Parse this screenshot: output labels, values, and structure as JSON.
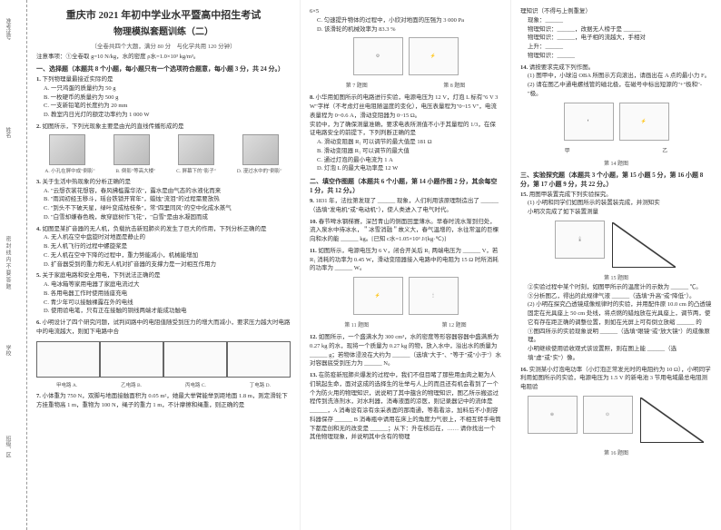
{
  "binding": {
    "l1": "准考证号",
    "l2": "姓名",
    "l3": "密 封 线 内 不 要 答 题",
    "l4": "学校",
    "l5": "班级、区"
  },
  "header": {
    "title": "重庆市 2021 年初中学业水平暨高中招生考试",
    "subtitle": "物理模拟套题训练（二）",
    "meta": "（全卷共四个大题，满分 80 分　与化学共用 120 分钟）",
    "note": "注意事项：①全卷取 g=10 N/kg，水的密度 ρ水=1.0×10³ kg/m³。"
  },
  "section1": {
    "head": "一、选择题（本题共 8 个小题，每小题只有一个选项符合题意，每小题 3 分，共 24 分。）",
    "q1": {
      "num": "1.",
      "stem": "下列物理量最接近实际的是",
      "opts": [
        "A. 一只鸡蛋的质量约为 50 g",
        "B. 一枚硬币的质量约为 500 g",
        "C. 一支新铅笔的长度约为 20 mm",
        "D. 教室内日光灯的额定功率约为 1 000 W"
      ]
    },
    "q2": {
      "num": "2.",
      "stem": "如图所示，下列光现象主要是由光的直线传播形成的是",
      "caps": [
        "A. 小孔在屏中成\"倒影\"",
        "B. 倒影\"等高大楼\"",
        "C. 屏幕下的\"影子\"",
        "D. 漫过水中的\"倒影\""
      ]
    },
    "q3": {
      "num": "3.",
      "stem": "关于生活中热现象的分析正确的是",
      "opts": [
        "A. \"云想衣裳花想容，春风拂槛露华浓\"，露水是由气态的水液化而来",
        "B. \"雨润初经玉移斗，瑶台铁锁开宵年\"，蜡烛\"流泪\"的过程需要放热",
        "C. \"到头不下破天星，绿叶变成枯枝条\"，常\"四里同风\"的空中化成水蒸气",
        "D. \"白雪却嫌春色晚，故穿庭树作飞花\"，\"白雪\"是由水凝固而成"
      ]
    },
    "q4": {
      "num": "4.",
      "stem": "如图是某扩音器的无人机，负载抗击新冠肺炎的发生了巨大的作用，下列分析正确的是",
      "opts": [
        "A. 无人机在空中盘旋时对地面是静止的",
        "B. 无人机飞行的过程中螺旋桨是",
        "C. 无人机在空中下降的过程中，重力势能减小，机械能增加",
        "D. 扩音器受到的重力和无人机对扩音器的支撑力是一对相互作用力"
      ]
    },
    "q5": {
      "num": "5.",
      "stem": "关于家庭电路和安全用电，下列说法正确的是",
      "opts": [
        "A. 电冰箱等家用电器了家庭电流过大",
        "B. 各用电器工作时使用插座充电",
        "C. 青少年可以接触裸露在外的电线",
        "D. 使用验电笔，只有正在接触的铜线两端才能成功触电"
      ]
    },
    "q6": {
      "num": "6.",
      "stem": "小明设计了四个研究问题，试判间路中的电阻值随受到压力的增大而减小，要求压力越大时电路中的电流越大，则如下电路中合",
      "caps": [
        "甲电路 A.",
        "乙电路 B.",
        "丙电路 C.",
        "丁电路 D."
      ]
    },
    "q7": {
      "num": "7.",
      "stem": "小体重为 750 N，双脚与地面接触面积为 0.05 m²，她最大举臂能举到距地面 1.8 m，则定滑轮下方挂重物高 1 m，重物为 100 N，绳子的重力 1 m，不计摩擦和绳重，则正确的是",
      "statement_c": "C. 匀速提升物体的过程中，小欣对地面的压强为 3 000 Pa",
      "statement_d": "D. 该滑轮的机械效率为 83.3 %"
    }
  },
  "col2": {
    "q7_cont": "6×5",
    "fig7cap": "第 7 题图",
    "fig8cap": "第 8 题图",
    "q8": {
      "num": "8.",
      "stem": "小华用如图所示的电路进行实验，电源电压为 12 V，灯泡 L 标有\"6 V 3 W\"字样（不考虑灯丝电阻随温度的变化），电压表量程为\"0~15 V\"，电流表量程为 0~0.6 A，滑动变阻器为 0~15 Ω。",
      "lead": "实验中，为了确保测量准确，要求电表所测值不小于其量程的 1/3，在保证电路安全的前提下，下列判断正确的是",
      "opts": [
        "A. 滑动变阻器 R₁ 可以调节的最大值是 181 Ω",
        "B. 滑动变阻器 R₁ 可以调节的最大值",
        "C. 通过灯泡的最小电流为 1 A",
        "D. 灯泡 L 的最大电功率是 12 W"
      ]
    },
    "section2_head": "二、填空作图题（本题共 6 个小题，第 14 小题作图 2 分，其余每空 1 分，共 12 分。）",
    "q9": {
      "num": "9.",
      "stem": "1831 年，法拉第发现了 ______ 现象，人们利用该原理制造出了 ______（选填\"发电机\"或\"电动机\"），使人类进入了电气时代。"
    },
    "q10": {
      "num": "10.",
      "stem": "春节啤水钢梯赛，深凹青山的侧面回里薄水。早春时流水渐到归处，流入泉水中待冰水，＂冰雪消融＂故义大，春气温增的，水往常温的巨棵向和水的能 ______ kg。[已知 c水=1.05×10³ J/(kg·℃)]"
    },
    "q11": {
      "num": "11.",
      "stem": "如图所示，电源电压为 6 V，闭合开关后 R₁ 两端电压为 ______ V，若 R₁ 消耗的功率为 0.45 W，滑动变阻器接入电路中的电阻为 15 Ω 时所消耗的功率为 ______ W。",
      "fig11cap": "第 11 题图",
      "fig12cap": "第 12 题图"
    },
    "q12": {
      "num": "12.",
      "stem": "如图所示，一个盛满水为 300 cm³，水的密度等形容器容器中盛满质为 0.27 kg 的水，现将一个质量为 0.27 kg 的物，放入水中，溢出水的质量为 ______ g；若物体浸没在大约为 ______（选填\"大于\"、\"等于\"或\"小于\"）水对容器底受到压力为 ______ N。"
    },
    "q13": {
      "num": "13.",
      "stem": "在防疫新冠肺炎爆发的过程中，我们不但目睹了那些用血肉之躯为人们筑起生命，面对这成的选择生的壮举与人上的而且还有机会看到了一个个为防火用的物理知识，说说明了其中蕴含的物理知识，图乙所示搬运过程传到洗涤剂水，对水利器，消毒液面的凉医，则记录器记中的流体是 ______，A 消毒设有涂有余采表面的那南通，等看看涂，加料后不小则容科器保存 ______ B 消毒瓶中请用在床上的角度力气很上，不相互转手电筒下都是创和无的改变是 ______；从下：升在核后在，…… 请你找出一个其他物理现象，并说明其中含有的物理"
    }
  },
  "col3": {
    "lead1": "理知识（不得与上例重复）",
    "lines": [
      "现象：______",
      "物理知识：______，改据无人榜于是 ______",
      "物理知识：______，电子相的流越大，手相对",
      "上升：______",
      "物理知识：______"
    ],
    "q14": {
      "num": "14.",
      "stem": "请按要求完成下列作图。",
      "sub1": "(1) 图甲中，小球沿 OBA 所图示方向滚出，请画出在 A 点的最小力 F。",
      "sub2": "(2) 请在图乙中通电螺线管的磁北极，在磁号中标出短源的\"+\"极和\"-\"极。"
    },
    "fig14row": {
      "cap1": "甲",
      "cap2": "乙",
      "blockcap": "第 14 题图"
    },
    "section3_head": "三、实验探究题（本题共 3 个小题，第 15 小题 5 分，第 16 小题 8 分，第 17 小题 9 分，共 22 分。）",
    "q15": {
      "num": "15.",
      "stem": "用图甲装置完成下列实验探究。",
      "sub1": "(1) 小明和同学们如图所示的装置装完成，并测知实",
      "sub2": "小明次完成了如下装置测量",
      "fig15cap": "第 15 题图",
      "sub3": "②实验过程中某个时刻，如图甲所示的温度计的示数为 ______ ℃。",
      "sub4": "③分析图乙，得出的此规律气液 ______（选填\"升高\"或\"降低\"）。",
      "sub5": "(2) 小明在探究凸透镜成像规律时的实验，并用配件原 10.0 cm 的凸透镜固定在光具座上 50 cm 处线，将点燃的蜡烛放在光具座上，调节两，使它有存在距正确的调整位置，则如在光屏上可有倒立放缩 ______ 的",
      "sub6": "①图四所示的实验现象说明 ______（选填\"眼镜\"或\"放大镜\"）的成像原理。",
      "sub7": "小明继续使用验收观式该设置照，则在图上能 ______（选填\"虚\"或\"实\"）像。"
    },
    "q16": {
      "num": "16.",
      "stem": "实测某小灯泡电功率（小灯泡正常发光时的电阻约为 10 Ω），小明同学利用如图所示的实验，电源电压为 1.5 V 的新电池 3 节用电域最总电阻测电阻验",
      "fig16cap": "第 16 题图"
    },
    "charts": {
      "xlabel": "U/V",
      "ylabel": "I/A",
      "grid_color": "#ddd",
      "line_color": "#333"
    }
  }
}
